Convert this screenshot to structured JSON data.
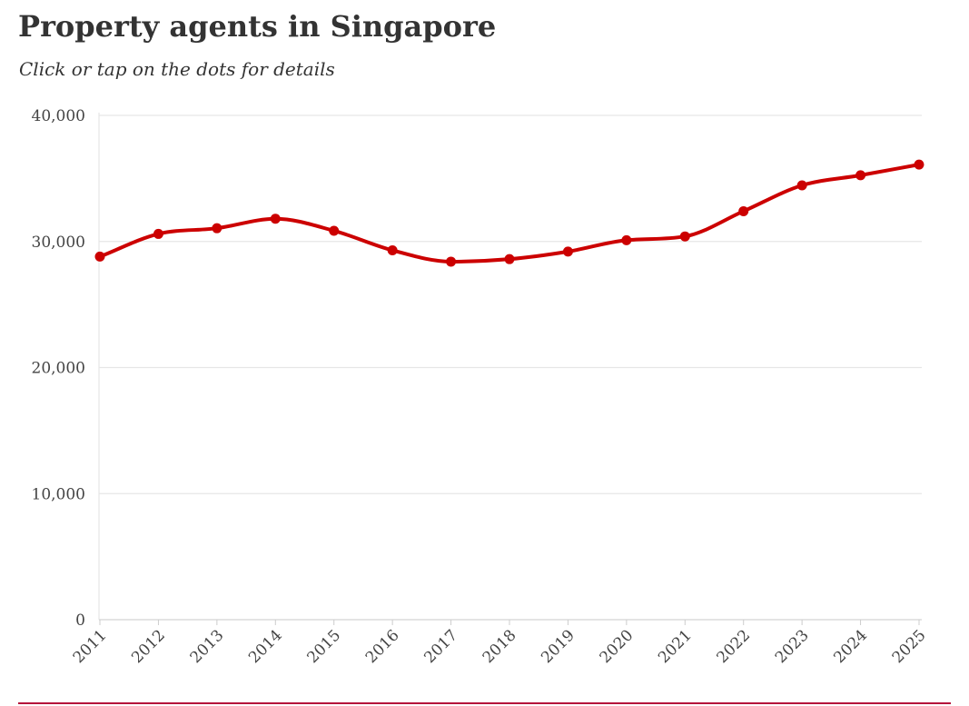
{
  "header": {
    "title": "Property agents in Singapore",
    "subtitle": "Click or tap on the dots for details"
  },
  "colors": {
    "line": "#cc0000",
    "grid": "#e6e6e6",
    "text": "#333333",
    "rule": "#b5123b"
  },
  "chart_data": {
    "type": "line",
    "title": "Property agents in Singapore",
    "subtitle": "Click or tap on the dots for details",
    "xlabel": "",
    "ylabel": "",
    "categories": [
      "2011",
      "2012",
      "2013",
      "2014",
      "2015",
      "2016",
      "2017",
      "2018",
      "2019",
      "2020",
      "2021",
      "2022",
      "2023",
      "2024",
      "2025"
    ],
    "series": [
      {
        "values": [
          28800,
          30600,
          31050,
          31800,
          30850,
          29300,
          28400,
          28600,
          29200,
          30100,
          30400,
          32400,
          34450,
          35250,
          36100
        ]
      }
    ],
    "ylim": [
      0,
      40000
    ],
    "yticks": [
      0,
      10000,
      20000,
      30000,
      40000
    ],
    "ytick_labels": [
      "0",
      "10,000",
      "20,000",
      "30,000",
      "40,000"
    ],
    "grid": true,
    "legend": "none",
    "smooth": true
  }
}
